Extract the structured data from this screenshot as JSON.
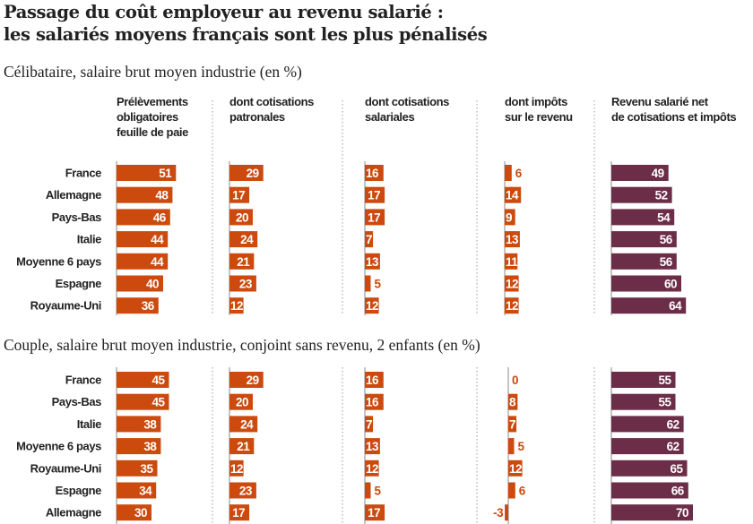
{
  "title_line1": "Passage du coût employeur au revenu salarié :",
  "title_line2": "les salariés moyens français sont les plus pénalisés",
  "colors": {
    "orange": "#cc4a0e",
    "plum": "#6b2d47",
    "text": "#222222"
  },
  "chart_data": {
    "type": "bar",
    "orientation": "horizontal",
    "unit": "%",
    "columns": [
      {
        "label": [
          "Prélèvements",
          "obligatoires",
          "feuille de paie"
        ],
        "color": "orange"
      },
      {
        "label": [
          "dont cotisations",
          "patronales"
        ],
        "color": "orange"
      },
      {
        "label": [
          "dont cotisations",
          "salariales"
        ],
        "color": "orange"
      },
      {
        "label": [
          "dont impôts",
          "sur le revenu"
        ],
        "color": "orange"
      },
      {
        "label": [
          "Revenu salarié net",
          "de cotisations et impôts"
        ],
        "color": "plum"
      }
    ],
    "panels": [
      {
        "subtitle": "Célibataire, salaire brut moyen industrie (en %)",
        "categories": [
          "France",
          "Allemagne",
          "Pays-Bas",
          "Italie",
          "Moyenne 6 pays",
          "Espagne",
          "Royaume-Uni"
        ],
        "values": [
          [
            51,
            48,
            46,
            44,
            44,
            40,
            36
          ],
          [
            29,
            17,
            20,
            24,
            21,
            23,
            12
          ],
          [
            16,
            17,
            17,
            7,
            13,
            5,
            12
          ],
          [
            6,
            14,
            9,
            13,
            11,
            12,
            12
          ],
          [
            49,
            52,
            54,
            56,
            56,
            60,
            64
          ]
        ]
      },
      {
        "subtitle": "Couple, salaire brut moyen industrie, conjoint sans revenu, 2 enfants (en %)",
        "categories": [
          "France",
          "Pays-Bas",
          "Italie",
          "Moyenne 6 pays",
          "Royaume-Uni",
          "Espagne",
          "Allemagne"
        ],
        "values": [
          [
            45,
            45,
            38,
            38,
            35,
            34,
            30
          ],
          [
            29,
            20,
            24,
            21,
            12,
            23,
            17
          ],
          [
            16,
            16,
            7,
            13,
            12,
            5,
            17
          ],
          [
            0,
            8,
            7,
            5,
            12,
            6,
            -3
          ],
          [
            55,
            55,
            62,
            62,
            65,
            66,
            70
          ]
        ]
      }
    ]
  }
}
